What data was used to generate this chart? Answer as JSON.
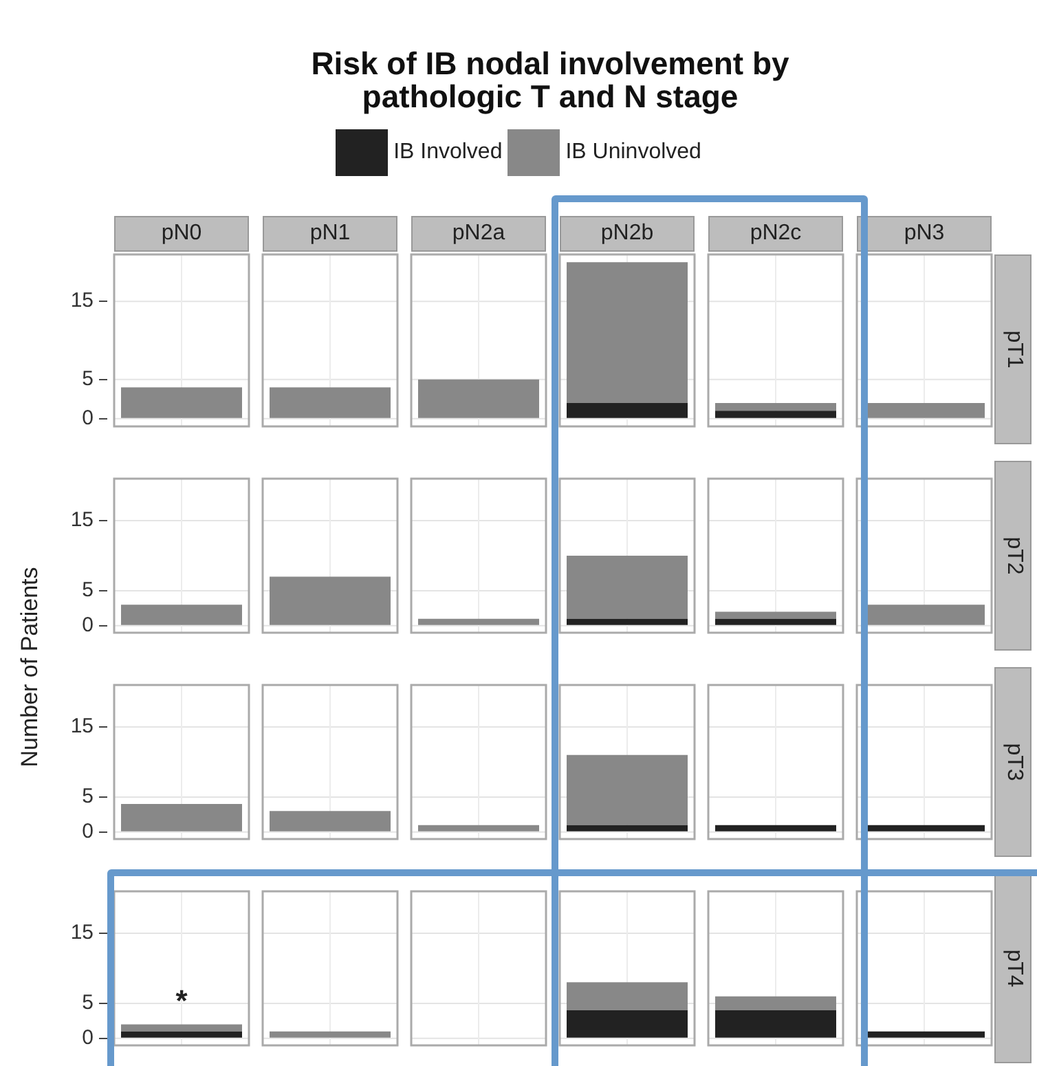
{
  "chart_data": [
    {
      "type": "other",
      "title": "Risk of IB nodal involvement by pathologic T and N stage",
      "ylabel": "Number of Patients"
    },
    {
      "type": "bar",
      "stacked": true,
      "categories": [
        "pN0",
        "pN1",
        "pN2a",
        "pN2b",
        "pN2c",
        "pN3"
      ],
      "series": [
        {
          "name": "IB Involved",
          "color": "#222222",
          "values": [
            0,
            0,
            0,
            2,
            1,
            0
          ]
        },
        {
          "name": "IB Uninvolved",
          "color": "#888888",
          "values": [
            4,
            4,
            5,
            18,
            1,
            2
          ]
        }
      ],
      "ylim": [
        -1,
        21
      ],
      "yticks": [
        0,
        5,
        15
      ],
      "grid": true,
      "y2label": "pT1",
      "legend": "top"
    },
    {
      "type": "bar",
      "stacked": true,
      "categories": [
        null,
        null,
        null,
        null,
        null,
        null
      ],
      "series": [
        {
          "color": "#222222",
          "values": [
            0,
            0,
            0,
            1,
            1,
            0
          ]
        },
        {
          "color": "#888888",
          "values": [
            3,
            7,
            1,
            9,
            1,
            3
          ]
        }
      ],
      "ylim": [
        -1,
        21
      ],
      "yticks": [
        0,
        5,
        15
      ],
      "grid": true,
      "y2label": "pT2",
      "tick_labels": "y"
    },
    {
      "type": "bar",
      "stacked": true,
      "categories": [
        null,
        null,
        null,
        null,
        null,
        null
      ],
      "series": [
        {
          "color": "#222222",
          "values": [
            0,
            0,
            0,
            1,
            1,
            1
          ]
        },
        {
          "color": "#888888",
          "values": [
            4,
            3,
            1,
            10,
            0,
            0
          ]
        }
      ],
      "ylim": [
        -1,
        21
      ],
      "yticks": [
        0,
        5,
        15
      ],
      "grid": true,
      "y2label": "pT3",
      "tick_labels": "y"
    },
    {
      "type": "bar",
      "stacked": true,
      "categories": [
        null,
        null,
        null,
        null,
        null,
        null
      ],
      "series": [
        {
          "color": "#222222",
          "values": [
            1,
            0,
            0,
            4,
            4,
            1
          ]
        },
        {
          "color": "#888888",
          "values": [
            1,
            1,
            0,
            4,
            2,
            0
          ]
        }
      ],
      "ylim": [
        -1,
        21
      ],
      "yticks": [
        0,
        5,
        15
      ],
      "grid": true,
      "y2label": "pT4",
      "tick_labels": "y",
      "annotations": [
        "*"
      ]
    }
  ]
}
